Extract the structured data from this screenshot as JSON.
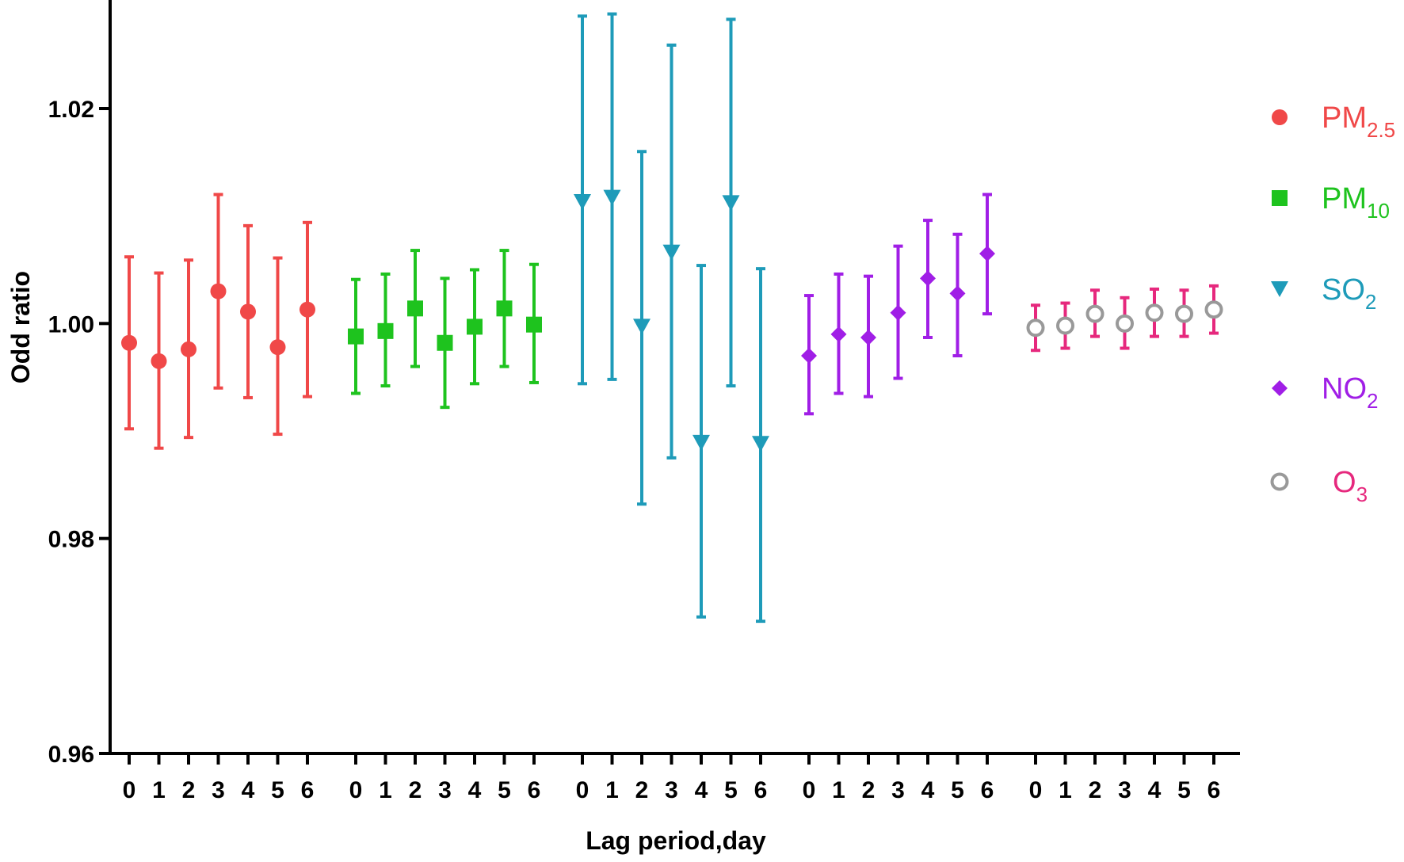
{
  "chart_data": {
    "type": "scatter",
    "title": "",
    "xlabel": "Lag period,day",
    "ylabel": "Odd ratio",
    "ylim": [
      0.96,
      1.03
    ],
    "yticks": [
      "0.96",
      "0.98",
      "1.00",
      "1.02"
    ],
    "ytick_values": [
      0.96,
      0.98,
      1.0,
      1.02
    ],
    "x_tick_labels": [
      "0",
      "1",
      "2",
      "3",
      "4",
      "5",
      "6"
    ],
    "grid": false,
    "legend_position": "right",
    "series": [
      {
        "name_main": "PM",
        "name_sub": "2.5",
        "marker": "circle",
        "color": "#f04848",
        "marker_fill": "#f04848",
        "errorbar_color": "#f04848",
        "legend_text_color": "#f04848",
        "lags": [
          0,
          1,
          2,
          3,
          4,
          5,
          6
        ],
        "values": [
          0.9982,
          0.9965,
          0.9976,
          1.003,
          1.0011,
          0.9978,
          1.0013
        ],
        "lower": [
          0.9902,
          0.9884,
          0.9894,
          0.994,
          0.9931,
          0.9897,
          0.9932
        ],
        "upper": [
          1.0062,
          1.0047,
          1.0059,
          1.012,
          1.0091,
          1.0061,
          1.0094
        ]
      },
      {
        "name_main": "PM",
        "name_sub": "10",
        "marker": "square",
        "color": "#1ec31e",
        "marker_fill": "#1ec31e",
        "errorbar_color": "#1ec31e",
        "legend_text_color": "#1ec31e",
        "lags": [
          0,
          1,
          2,
          3,
          4,
          5,
          6
        ],
        "values": [
          0.9988,
          0.9993,
          1.0014,
          0.9982,
          0.9997,
          1.0014,
          0.9999
        ],
        "lower": [
          0.9935,
          0.9942,
          0.996,
          0.9922,
          0.9944,
          0.996,
          0.9945
        ],
        "upper": [
          1.0041,
          1.0046,
          1.0068,
          1.0042,
          1.005,
          1.0068,
          1.0055
        ]
      },
      {
        "name_main": "SO",
        "name_sub": "2",
        "marker": "triangle-down",
        "color": "#1e9bb9",
        "marker_fill": "#1e9bb9",
        "errorbar_color": "#1e9bb9",
        "legend_text_color": "#1e9bb9",
        "lags": [
          0,
          1,
          2,
          3,
          4,
          5,
          6
        ],
        "values": [
          1.0113,
          1.0117,
          0.9997,
          1.0066,
          0.9889,
          1.0112,
          0.9888
        ],
        "lower": [
          0.9944,
          0.9948,
          0.9832,
          0.9875,
          0.9727,
          0.9942,
          0.9723
        ],
        "upper": [
          1.0286,
          1.0288,
          1.016,
          1.0259,
          1.0054,
          1.0283,
          1.0051
        ]
      },
      {
        "name_main": "NO",
        "name_sub": "2",
        "marker": "diamond",
        "color": "#a01ee6",
        "marker_fill": "#a01ee6",
        "errorbar_color": "#a01ee6",
        "legend_text_color": "#a01ee6",
        "lags": [
          0,
          1,
          2,
          3,
          4,
          5,
          6
        ],
        "values": [
          0.997,
          0.999,
          0.9987,
          1.001,
          1.0042,
          1.0028,
          1.0065
        ],
        "lower": [
          0.9916,
          0.9935,
          0.9932,
          0.9949,
          0.9987,
          0.997,
          1.0009
        ],
        "upper": [
          1.0026,
          1.0046,
          1.0044,
          1.0072,
          1.0096,
          1.0083,
          1.012
        ]
      },
      {
        "name_main": "O",
        "name_sub": "3",
        "marker": "circle-open",
        "color": "#999999",
        "marker_fill": "none",
        "errorbar_color": "#e6287d",
        "legend_text_color": "#e6287d",
        "lags": [
          0,
          1,
          2,
          3,
          4,
          5,
          6
        ],
        "values": [
          0.9996,
          0.9998,
          1.0009,
          1.0,
          1.001,
          1.0009,
          1.0013
        ],
        "lower": [
          0.9975,
          0.9977,
          0.9988,
          0.9977,
          0.9988,
          0.9988,
          0.9991
        ],
        "upper": [
          1.0017,
          1.0019,
          1.0031,
          1.0024,
          1.0032,
          1.0031,
          1.0035
        ]
      }
    ]
  }
}
